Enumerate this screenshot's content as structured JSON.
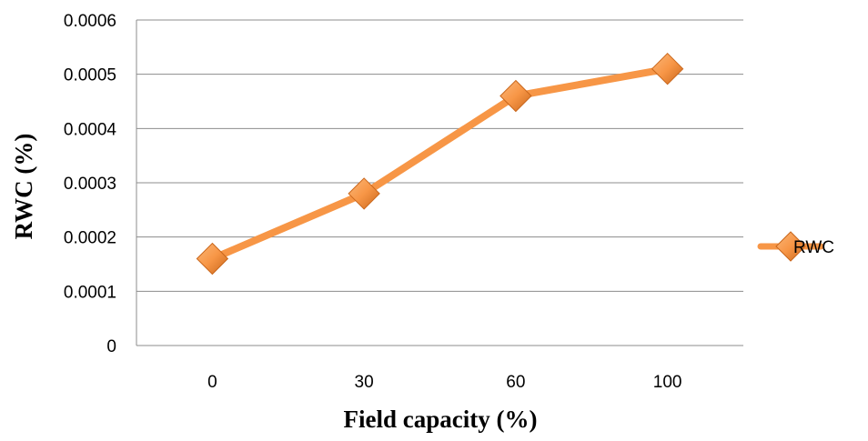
{
  "chart_data": {
    "type": "line",
    "title": "",
    "xlabel": "Field capacity (%)",
    "ylabel": "RWC (%)",
    "categories": [
      "0",
      "30",
      "60",
      "100"
    ],
    "ylim": [
      0,
      0.0006
    ],
    "yticks": [
      0,
      0.0001,
      0.0002,
      0.0003,
      0.0004,
      0.0005,
      0.0006
    ],
    "ytick_labels": [
      "0",
      "0.0001",
      "0.0002",
      "0.0003",
      "0.0004",
      "0.0005",
      "0.0006"
    ],
    "grid": "horizontal",
    "legend_position": "right",
    "series": [
      {
        "name": "RWC",
        "values": [
          0.00016,
          0.00028,
          0.00046,
          0.00051
        ],
        "color": "#f79646",
        "marker": "diamond"
      }
    ]
  }
}
